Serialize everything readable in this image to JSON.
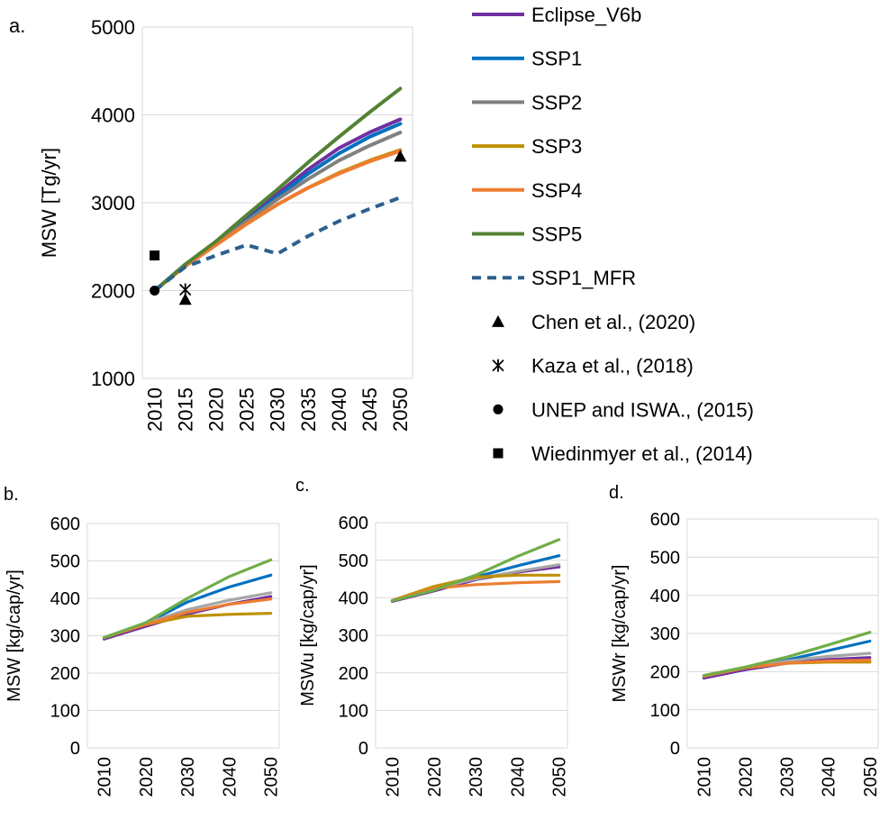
{
  "chart_data": [
    {
      "id": "a",
      "type": "line",
      "panel_label": "a.",
      "ylabel": "MSW [Tg/yr]",
      "ylim": [
        1000,
        5000
      ],
      "yticks": [
        1000,
        2000,
        3000,
        4000,
        5000
      ],
      "xticks": [
        "2010",
        "2015",
        "2020",
        "2025",
        "2030",
        "2035",
        "2040",
        "2045",
        "2050"
      ],
      "x": [
        2010,
        2015,
        2020,
        2025,
        2030,
        2035,
        2040,
        2045,
        2050
      ],
      "series": [
        {
          "name": "Eclipse_V6b",
          "color": "#7030a0",
          "dash": false,
          "values": [
            2000,
            2280,
            2550,
            2820,
            3100,
            3380,
            3620,
            3800,
            3950
          ]
        },
        {
          "name": "SSP1",
          "color": "#0070c0",
          "dash": false,
          "values": [
            2000,
            2280,
            2540,
            2800,
            3070,
            3330,
            3560,
            3750,
            3900
          ]
        },
        {
          "name": "SSP2",
          "color": "#808080",
          "dash": false,
          "values": [
            2000,
            2280,
            2530,
            2790,
            3040,
            3270,
            3480,
            3650,
            3800
          ]
        },
        {
          "name": "SSP3",
          "color": "#bf9000",
          "dash": false,
          "values": [
            2000,
            2280,
            2520,
            2760,
            2980,
            3170,
            3340,
            3480,
            3600
          ]
        },
        {
          "name": "SSP4",
          "color": "#ed7d31",
          "dash": false,
          "values": [
            2000,
            2280,
            2520,
            2760,
            2980,
            3170,
            3330,
            3470,
            3590
          ]
        },
        {
          "name": "SSP5",
          "color": "#548235",
          "dash": false,
          "values": [
            2000,
            2300,
            2560,
            2860,
            3150,
            3460,
            3750,
            4030,
            4300
          ]
        },
        {
          "name": "SSP1_MFR",
          "color": "#2e5f8e",
          "dash": true,
          "values": [
            2000,
            2270,
            2400,
            2520,
            2420,
            2620,
            2790,
            2930,
            3060
          ]
        }
      ],
      "markers": [
        {
          "name": "Chen et al., (2020)",
          "symbol": "triangle",
          "points": [
            [
              2015,
              1900
            ],
            [
              2050,
              3530
            ]
          ]
        },
        {
          "name": "Kaza et al., (2018)",
          "symbol": "asterisk",
          "points": [
            [
              2015,
              2010
            ]
          ]
        },
        {
          "name": "UNEP and ISWA., (2015)",
          "symbol": "circle",
          "points": [
            [
              2010,
              2000
            ]
          ]
        },
        {
          "name": "Wiedinmyer et al., (2014)",
          "symbol": "square",
          "points": [
            [
              2010,
              2400
            ]
          ]
        }
      ],
      "legend": "right"
    },
    {
      "id": "b",
      "type": "line",
      "panel_label": "b.",
      "ylabel": "MSW [kg/cap/yr]",
      "ylim": [
        0,
        600
      ],
      "yticks": [
        0,
        100,
        200,
        300,
        400,
        500,
        600
      ],
      "xticks": [
        "2010",
        "2020",
        "2030",
        "2040",
        "2050"
      ],
      "x": [
        2010,
        2020,
        2030,
        2040,
        2050
      ],
      "series": [
        {
          "name": "Eclipse_V6b",
          "color": "#7030a0",
          "values": [
            291,
            325,
            358,
            384,
            405
          ]
        },
        {
          "name": "SSP1",
          "color": "#0070c0",
          "values": [
            295,
            333,
            390,
            430,
            462
          ]
        },
        {
          "name": "SSP2",
          "color": "#a6a6a6",
          "values": [
            295,
            333,
            370,
            395,
            415
          ]
        },
        {
          "name": "SSP3",
          "color": "#bf9000",
          "values": [
            295,
            330,
            352,
            357,
            360
          ]
        },
        {
          "name": "SSP4",
          "color": "#ed7d31",
          "values": [
            295,
            330,
            363,
            384,
            398
          ]
        },
        {
          "name": "SSP5",
          "color": "#70ad47",
          "values": [
            295,
            335,
            400,
            458,
            503
          ]
        }
      ]
    },
    {
      "id": "c",
      "type": "line",
      "panel_label": "c.",
      "ylabel": "MSWu  [kg/cap/yr]",
      "ylim": [
        0,
        600
      ],
      "yticks": [
        0,
        100,
        200,
        300,
        400,
        500,
        600
      ],
      "xticks": [
        "2010",
        "2020",
        "2030",
        "2040",
        "2050"
      ],
      "x": [
        2010,
        2020,
        2030,
        2040,
        2050
      ],
      "series": [
        {
          "name": "Eclipse_V6b",
          "color": "#7030a0",
          "values": [
            390,
            418,
            448,
            468,
            482
          ]
        },
        {
          "name": "SSP1",
          "color": "#0070c0",
          "values": [
            392,
            425,
            455,
            485,
            512
          ]
        },
        {
          "name": "SSP2",
          "color": "#a6a6a6",
          "values": [
            392,
            425,
            450,
            470,
            488
          ]
        },
        {
          "name": "SSP3",
          "color": "#bf9000",
          "values": [
            393,
            430,
            455,
            460,
            460
          ]
        },
        {
          "name": "SSP4",
          "color": "#ed7d31",
          "values": [
            393,
            425,
            435,
            440,
            443
          ]
        },
        {
          "name": "SSP5",
          "color": "#70ad47",
          "values": [
            392,
            420,
            460,
            510,
            555
          ]
        }
      ]
    },
    {
      "id": "d",
      "type": "line",
      "panel_label": "d.",
      "ylabel": "MSWr  [kg/cap/yr]",
      "ylim": [
        0,
        600
      ],
      "yticks": [
        0,
        100,
        200,
        300,
        400,
        500,
        600
      ],
      "xticks": [
        "2010",
        "2020",
        "2030",
        "2040",
        "2050"
      ],
      "x": [
        2010,
        2020,
        2030,
        2040,
        2050
      ],
      "series": [
        {
          "name": "Eclipse_V6b",
          "color": "#7030a0",
          "values": [
            183,
            205,
            222,
            232,
            237
          ]
        },
        {
          "name": "SSP1",
          "color": "#0070c0",
          "values": [
            188,
            210,
            230,
            255,
            280
          ]
        },
        {
          "name": "SSP2",
          "color": "#a6a6a6",
          "values": [
            188,
            210,
            228,
            240,
            248
          ]
        },
        {
          "name": "SSP3",
          "color": "#bf9000",
          "values": [
            188,
            210,
            222,
            225,
            225
          ]
        },
        {
          "name": "SSP4",
          "color": "#ed7d31",
          "values": [
            188,
            210,
            222,
            228,
            230
          ]
        },
        {
          "name": "SSP5",
          "color": "#70ad47",
          "values": [
            190,
            212,
            238,
            270,
            303
          ]
        }
      ]
    }
  ]
}
